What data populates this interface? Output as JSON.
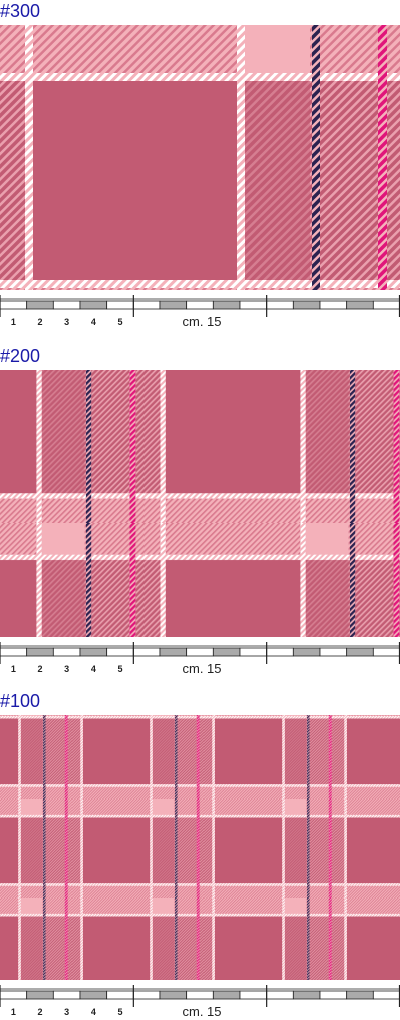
{
  "swatches": [
    {
      "label": "#300"
    },
    {
      "label": "#200"
    },
    {
      "label": "#100"
    }
  ],
  "scale": {
    "labels": [
      "1",
      "2",
      "3",
      "4",
      "5"
    ],
    "unit": "cm. 15"
  }
}
